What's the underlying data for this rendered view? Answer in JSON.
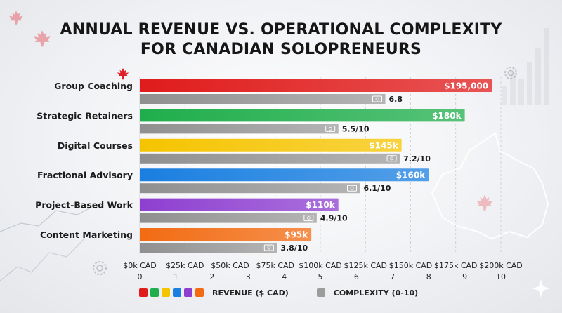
{
  "title_line1": "ANNUAL REVENUE VS. OPERATIONAL COMPLEXITY",
  "title_line2": "FOR CANADIAN SOLOPRENEURS",
  "legend": {
    "revenue_label": "REVENUE ($ CAD)",
    "complexity_label": "COMPLEXITY (0-10)",
    "revenue_swatches": [
      "#e01b1b",
      "#1fae4b",
      "#f5c400",
      "#1a7fe0",
      "#8e3fd0",
      "#f26b12"
    ],
    "complexity_swatch": "#9c9c9c"
  },
  "chart_data": {
    "type": "bar",
    "orientation": "horizontal",
    "categories": [
      "Group Coaching",
      "Strategic Retainers",
      "Digital Courses",
      "Fractional Advisory",
      "Project-Based Work",
      "Content Marketing"
    ],
    "series": [
      {
        "name": "REVENUE ($ CAD)",
        "values": [
          195000,
          180000,
          145000,
          160000,
          110000,
          95000
        ],
        "labels": [
          "$195,000",
          "$180k",
          "$145k",
          "$160k",
          "$110k",
          "$95k"
        ],
        "colors": [
          "#e01b1b",
          "#1fae4b",
          "#f5c400",
          "#1a7fe0",
          "#8e3fd0",
          "#f26b12"
        ]
      },
      {
        "name": "COMPLEXITY (0-10)",
        "values": [
          6.8,
          5.5,
          7.2,
          6.1,
          4.9,
          3.8
        ],
        "labels": [
          "6.8",
          "5.5/10",
          "7.2/10",
          "6.1/10",
          "4.9/10",
          "3.8/10"
        ],
        "color": "#9c9c9c"
      }
    ],
    "x_axis_revenue": {
      "range": [
        0,
        200000
      ],
      "ticks": [
        0,
        25000,
        50000,
        75000,
        100000,
        125000,
        150000,
        175000,
        200000
      ],
      "tick_labels": [
        "$0k CAD",
        "$25k CAD",
        "$50k CAD",
        "$75k CAD",
        "$100k CAD",
        "$125k CAD",
        "$150k CAD",
        "$175k CAD",
        "$200k CAD"
      ]
    },
    "x_axis_complexity": {
      "range": [
        0,
        10
      ],
      "ticks": [
        0,
        1,
        2,
        3,
        4,
        5,
        6,
        7,
        8,
        9,
        10
      ],
      "tick_labels": [
        "0",
        "1",
        "2",
        "3",
        "4",
        "5",
        "6",
        "7",
        "8",
        "9",
        "10"
      ]
    },
    "grid": true,
    "legend_position": "bottom"
  }
}
